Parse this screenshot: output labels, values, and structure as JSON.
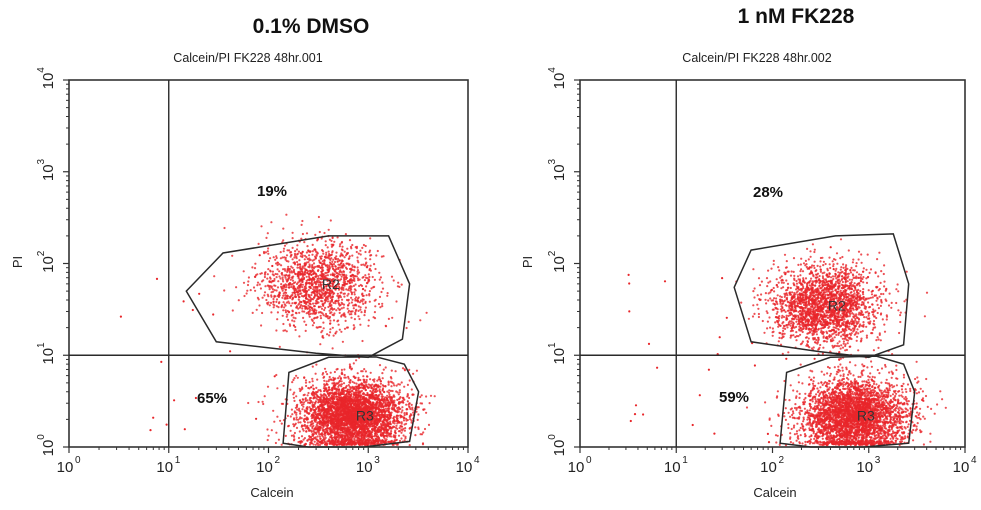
{
  "chart_data": [
    {
      "type": "scatter",
      "title": "0.1% DMSO",
      "subtitle": "Calcein/PI FK228 48hr.001",
      "xlabel": "Calcein",
      "ylabel": "PI",
      "xscale": "log",
      "yscale": "log",
      "xlim": [
        1,
        10000
      ],
      "ylim": [
        1,
        10000
      ],
      "x_ticks": [
        "10",
        "10",
        "10",
        "10",
        "10"
      ],
      "x_tick_exponents": [
        "0",
        "1",
        "2",
        "3",
        "4"
      ],
      "y_ticks": [
        "10",
        "10",
        "10",
        "10",
        "10"
      ],
      "y_tick_exponents": [
        "0",
        "1",
        "2",
        "3",
        "4"
      ],
      "quadrant_gate": {
        "x": 10,
        "y": 10
      },
      "regions": [
        {
          "name": "R2",
          "label": "R2",
          "percent_label": "19%",
          "polygon": [
            [
              15,
              50
            ],
            [
              35,
              130
            ],
            [
              400,
              200
            ],
            [
              1600,
              200
            ],
            [
              2600,
              60
            ],
            [
              2200,
              15
            ],
            [
              1000,
              9.5
            ],
            [
              300,
              10.5
            ],
            [
              30,
              14
            ]
          ],
          "center": [
            320,
            60
          ],
          "spread": [
            0.3,
            0.23
          ],
          "events": 1500,
          "percent": 19
        },
        {
          "name": "R3",
          "label": "R3",
          "percent_label": "65%",
          "polygon": [
            [
              140,
              1.1
            ],
            [
              160,
              6.5
            ],
            [
              400,
              9.5
            ],
            [
              1200,
              9.6
            ],
            [
              2300,
              8
            ],
            [
              3200,
              4
            ],
            [
              2600,
              1.15
            ],
            [
              900,
              1.0
            ],
            [
              250,
              1.0
            ]
          ],
          "center": [
            700,
            2.2
          ],
          "spread": [
            0.26,
            0.2
          ],
          "events": 3800,
          "percent": 65
        }
      ],
      "lower_left_label": "65%",
      "upper_label": "19%"
    },
    {
      "type": "scatter",
      "title": "1 nM FK228",
      "subtitle": "Calcein/PI FK228 48hr.002",
      "xlabel": "Calcein",
      "ylabel": "PI",
      "xscale": "log",
      "yscale": "log",
      "xlim": [
        1,
        10000
      ],
      "ylim": [
        1,
        10000
      ],
      "x_ticks": [
        "10",
        "10",
        "10",
        "10",
        "10"
      ],
      "x_tick_exponents": [
        "0",
        "1",
        "2",
        "3",
        "4"
      ],
      "y_ticks": [
        "10",
        "10",
        "10",
        "10",
        "10"
      ],
      "y_tick_exponents": [
        "0",
        "1",
        "2",
        "3",
        "4"
      ],
      "quadrant_gate": {
        "x": 10,
        "y": 10
      },
      "regions": [
        {
          "name": "R2",
          "label": "R2",
          "percent_label": "28%",
          "polygon": [
            [
              40,
              55
            ],
            [
              60,
              140
            ],
            [
              450,
              200
            ],
            [
              1800,
              210
            ],
            [
              2600,
              60
            ],
            [
              2300,
              13
            ],
            [
              1000,
              9.5
            ],
            [
              300,
              11
            ],
            [
              60,
              14
            ]
          ],
          "center": [
            350,
            35
          ],
          "spread": [
            0.28,
            0.22
          ],
          "events": 2200,
          "percent": 28
        },
        {
          "name": "R3",
          "label": "R3",
          "percent_label": "59%",
          "polygon": [
            [
              120,
              1.1
            ],
            [
              140,
              6.5
            ],
            [
              400,
              9.5
            ],
            [
              1200,
              9.8
            ],
            [
              2300,
              8
            ],
            [
              3000,
              4
            ],
            [
              2600,
              1.1
            ],
            [
              900,
              1.0
            ],
            [
              250,
              1.0
            ]
          ],
          "center": [
            700,
            2.2
          ],
          "spread": [
            0.28,
            0.2
          ],
          "events": 3400,
          "percent": 59
        }
      ],
      "lower_left_label": "59%",
      "upper_label": "28%"
    }
  ],
  "colors": {
    "dots": "#e8262a",
    "gate": "#2a2a2a",
    "axis": "#333333"
  }
}
